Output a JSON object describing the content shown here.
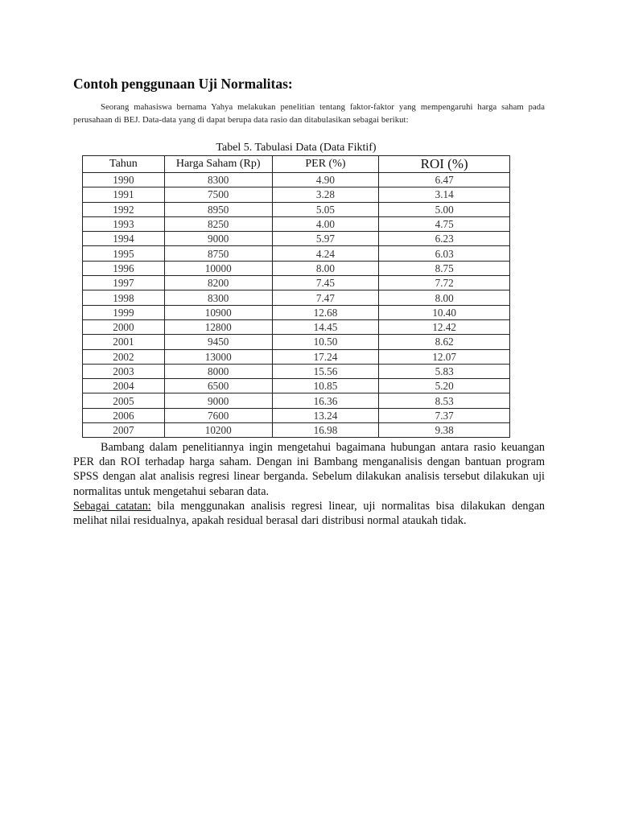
{
  "title": "Contoh penggunaan Uji Normalitas:",
  "intro": "Seorang mahasiswa bernama Yahya melakukan penelitian tentang faktor-faktor yang mempengaruhi harga saham pada perusahaan di BEJ. Data-data yang di dapat berupa data rasio dan ditabulasikan sebagai berikut:",
  "table": {
    "caption": "Tabel 5. Tabulasi Data (Data Fiktif)",
    "headers": [
      "Tahun",
      "Harga Saham (Rp)",
      "PER (%)",
      "ROI (%)"
    ],
    "rows": [
      [
        "1990",
        "8300",
        "4.90",
        "6.47"
      ],
      [
        "1991",
        "7500",
        "3.28",
        "3.14"
      ],
      [
        "1992",
        "8950",
        "5.05",
        "5.00"
      ],
      [
        "1993",
        "8250",
        "4.00",
        "4.75"
      ],
      [
        "1994",
        "9000",
        "5.97",
        "6.23"
      ],
      [
        "1995",
        "8750",
        "4.24",
        "6.03"
      ],
      [
        "1996",
        "10000",
        "8.00",
        "8.75"
      ],
      [
        "1997",
        "8200",
        "7.45",
        "7.72"
      ],
      [
        "1998",
        "8300",
        "7.47",
        "8.00"
      ],
      [
        "1999",
        "10900",
        "12.68",
        "10.40"
      ],
      [
        "2000",
        "12800",
        "14.45",
        "12.42"
      ],
      [
        "2001",
        "9450",
        "10.50",
        "8.62"
      ],
      [
        "2002",
        "13000",
        "17.24",
        "12.07"
      ],
      [
        "2003",
        "8000",
        "15.56",
        "5.83"
      ],
      [
        "2004",
        "6500",
        "10.85",
        "5.20"
      ],
      [
        "2005",
        "9000",
        "16.36",
        "8.53"
      ],
      [
        "2006",
        "7600",
        "13.24",
        "7.37"
      ],
      [
        "2007",
        "10200",
        "16.98",
        "9.38"
      ]
    ]
  },
  "body": {
    "paragraph": "Bambang dalam penelitiannya ingin mengetahui bagaimana hubungan antara rasio keuangan PER dan ROI terhadap harga saham. Dengan ini Bambang menganalisis dengan bantuan program SPSS dengan alat analisis regresi linear berganda. Sebelum dilakukan analisis tersebut dilakukan uji normalitas untuk mengetahui sebaran data.",
    "note_label": "Sebagai catatan:",
    "note_text": " bila menggunakan analisis regresi linear, uji normalitas bisa dilakukan dengan melihat nilai residualnya, apakah residual berasal dari distribusi normal ataukah tidak."
  }
}
